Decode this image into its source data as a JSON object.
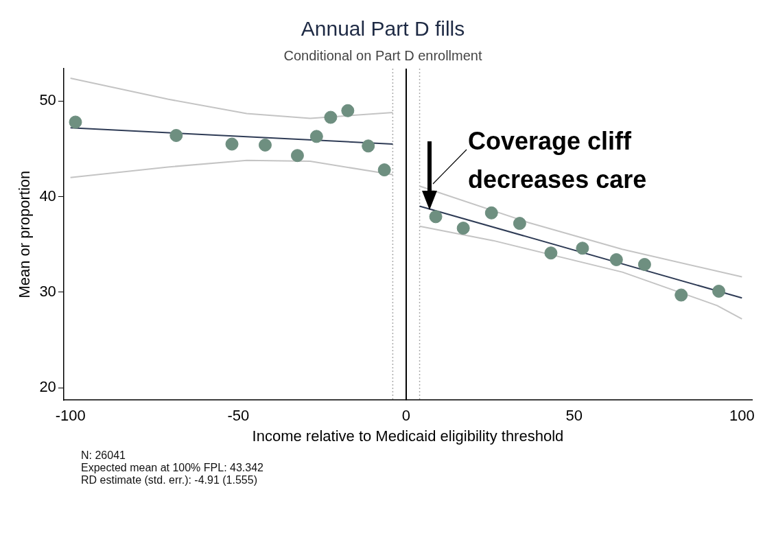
{
  "chart_data": {
    "type": "scatter",
    "title": "Annual Part D fills",
    "subtitle": "Conditional on Part D enrollment",
    "xlabel": "Income relative to Medicaid eligibility threshold",
    "ylabel": "Mean or proportion",
    "xlim": [
      -102,
      103
    ],
    "ylim": [
      18.7,
      53.4
    ],
    "xticks": [
      -100,
      -50,
      0,
      50,
      100
    ],
    "yticks": [
      20,
      30,
      40,
      50
    ],
    "grid": false,
    "legend": false,
    "series": [
      {
        "marker": "circle",
        "color": "#6e8f80",
        "x": [
          -98.5,
          -68.5,
          -51.9,
          -42.0,
          -32.4,
          -26.7,
          -22.5,
          -17.4,
          -11.3,
          -6.5
        ],
        "values": [
          47.8,
          46.4,
          45.5,
          45.4,
          44.3,
          46.3,
          48.3,
          49.0,
          45.3,
          42.8
        ]
      },
      {
        "marker": "circle",
        "color": "#6e8f80",
        "x": [
          8.8,
          17.0,
          25.4,
          33.8,
          43.1,
          52.5,
          62.6,
          71.0,
          81.9,
          93.1
        ],
        "values": [
          37.9,
          36.7,
          38.3,
          37.2,
          34.1,
          34.6,
          33.4,
          32.9,
          29.7,
          30.1
        ]
      },
      {
        "type": "line",
        "marker": "none",
        "color": "#2e3b55",
        "x": [
          -100,
          -4
        ],
        "values": [
          47.2,
          45.5
        ]
      },
      {
        "type": "line",
        "marker": "none",
        "color": "#2e3b55",
        "x": [
          4,
          100
        ],
        "values": [
          39.0,
          29.4
        ]
      },
      {
        "type": "line",
        "marker": "none",
        "color": "#c4c4c4",
        "x": [
          -100,
          -71,
          -47.5,
          -28.6,
          -4
        ],
        "values": [
          52.4,
          50.2,
          48.7,
          48.2,
          48.8
        ]
      },
      {
        "type": "line",
        "marker": "none",
        "color": "#c4c4c4",
        "x": [
          -100,
          -71,
          -47.5,
          -28.6,
          -4
        ],
        "values": [
          42.0,
          43.1,
          43.8,
          43.7,
          42.3
        ]
      },
      {
        "type": "line",
        "marker": "none",
        "color": "#c4c4c4",
        "x": [
          4,
          36.3,
          64.3,
          100
        ],
        "values": [
          41.1,
          37.3,
          34.5,
          31.6
        ]
      },
      {
        "type": "line",
        "marker": "none",
        "color": "#c4c4c4",
        "x": [
          4,
          25.9,
          64.4,
          92.6,
          100
        ],
        "values": [
          36.9,
          35.4,
          32.1,
          28.6,
          27.2
        ]
      }
    ],
    "ref_lines": [
      {
        "axis": "x",
        "value": 0,
        "color": "#000000",
        "line_style": "solid"
      },
      {
        "axis": "x",
        "value": -4,
        "color": "#aaaaaa",
        "line_style": "dotted"
      },
      {
        "axis": "x",
        "value": 4,
        "color": "#aaaaaa",
        "line_style": "dotted"
      }
    ],
    "annotations": [
      "Coverage cliff\ndecreases care",
      "N: 26041",
      "Expected mean at 100% FPL: 43.342",
      "RD estimate (std. err.): -4.91 (1.555)"
    ]
  }
}
